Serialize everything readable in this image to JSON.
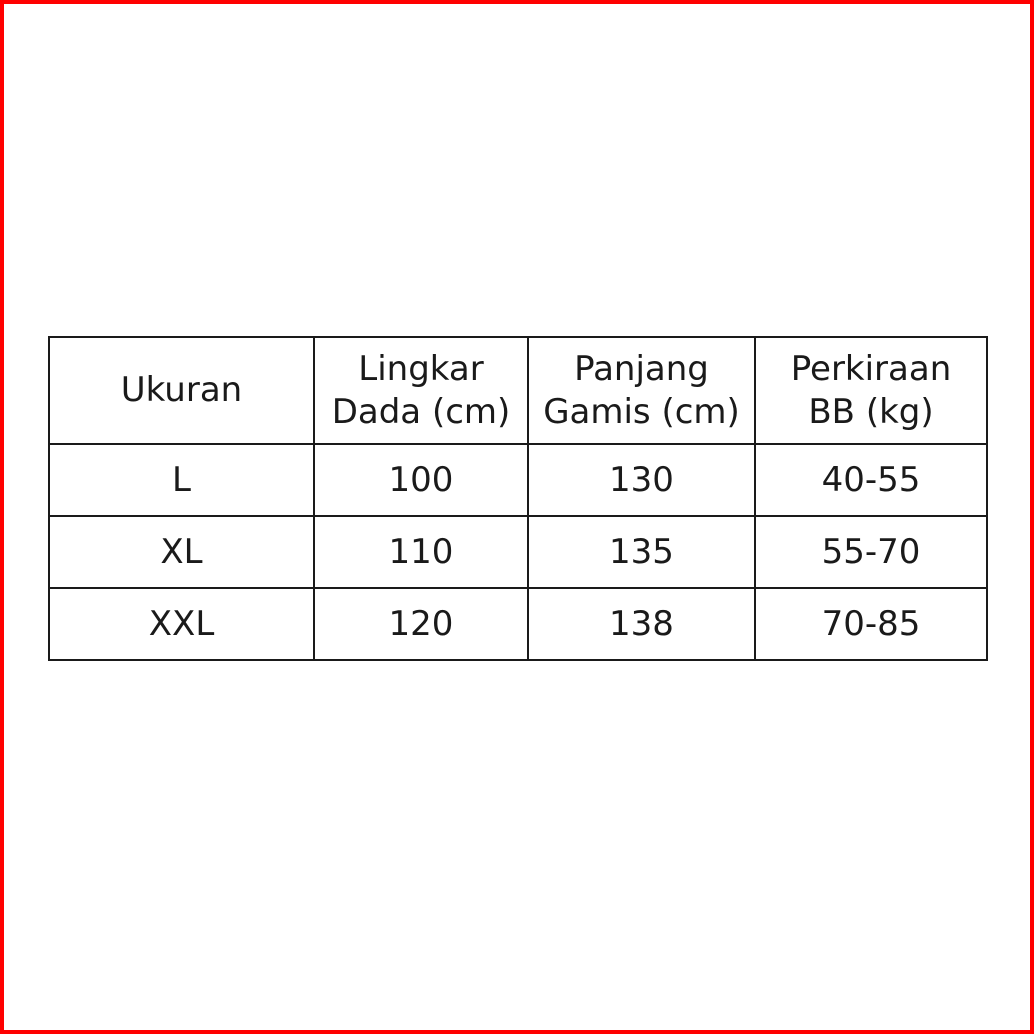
{
  "frame_color": "#ff0000",
  "table": {
    "headers": [
      {
        "line1": "Ukuran",
        "line2": ""
      },
      {
        "line1": "Lingkar",
        "line2": "Dada (cm)"
      },
      {
        "line1": "Panjang",
        "line2": "Gamis (cm)"
      },
      {
        "line1": "Perkiraan",
        "line2": "BB (kg)"
      }
    ],
    "rows": [
      [
        "L",
        "100",
        "130",
        "40-55"
      ],
      [
        "XL",
        "110",
        "135",
        "55-70"
      ],
      [
        "XXL",
        "120",
        "138",
        "70-85"
      ]
    ]
  }
}
